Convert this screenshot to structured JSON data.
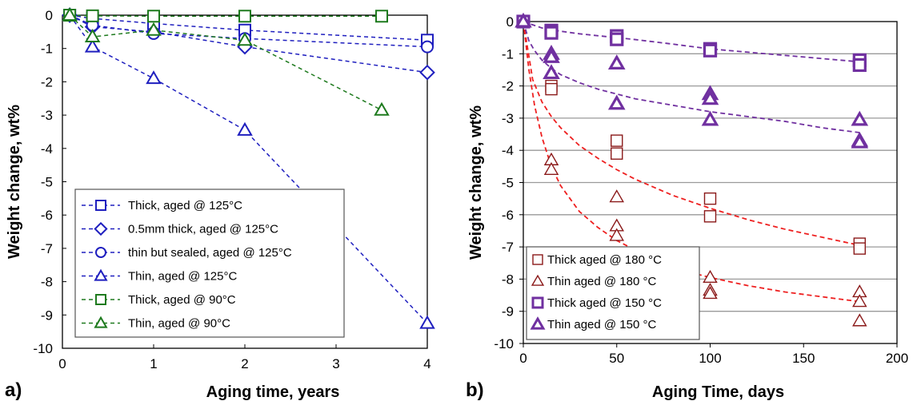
{
  "chart_data": [
    {
      "type": "line",
      "panel_label": "a)",
      "xlabel": "Aging time, years",
      "ylabel": "Weight change, wt%",
      "xlim": [
        0,
        4
      ],
      "ylim": [
        -10,
        0
      ],
      "xticks": [
        0,
        1,
        2,
        3,
        4
      ],
      "yticks": [
        0,
        -1,
        -2,
        -3,
        -4,
        -5,
        -6,
        -7,
        -8,
        -9,
        -10
      ],
      "grid": false,
      "legend_position": "bottom-left",
      "series": [
        {
          "name": "Thick, aged @ 125°C",
          "color": "#1f1fbf",
          "marker": "square",
          "line": "dashed",
          "x": [
            0.08,
            0.33,
            1,
            2,
            4
          ],
          "y": [
            0,
            -0.1,
            -0.25,
            -0.45,
            -0.75
          ]
        },
        {
          "name": "0.5mm thick, aged @ 125°C",
          "color": "#1f1fbf",
          "marker": "diamond",
          "line": "dashed",
          "x": [
            0.08,
            0.33,
            1,
            2,
            4
          ],
          "y": [
            0,
            -0.35,
            -0.5,
            -0.95,
            -1.72
          ]
        },
        {
          "name": "thin but sealed, aged @ 125°C",
          "color": "#1f1fbf",
          "marker": "circle",
          "line": "dashed",
          "x": [
            0.08,
            0.33,
            1,
            2,
            4
          ],
          "y": [
            0,
            -0.3,
            -0.55,
            -0.7,
            -0.95
          ]
        },
        {
          "name": "Thin, aged @ 125°C",
          "color": "#1f1fbf",
          "marker": "triangle",
          "line": "dashed",
          "x": [
            0.08,
            0.33,
            1,
            2,
            4
          ],
          "y": [
            0,
            -0.95,
            -1.9,
            -3.45,
            -9.25
          ]
        },
        {
          "name": "Thick, aged @ 90°C",
          "color": "#1e7a1e",
          "marker": "square",
          "line": "dashed",
          "x": [
            0.08,
            0.33,
            1,
            2,
            3.5
          ],
          "y": [
            0,
            -0.02,
            -0.03,
            -0.03,
            -0.03
          ]
        },
        {
          "name": "Thin, aged @ 90°C",
          "color": "#1e7a1e",
          "marker": "triangle",
          "line": "dashed",
          "x": [
            0.08,
            0.33,
            1,
            2,
            3.5
          ],
          "y": [
            0,
            -0.65,
            -0.45,
            -0.75,
            -2.85
          ]
        }
      ]
    },
    {
      "type": "scatter",
      "panel_label": "b)",
      "xlabel": "Aging Time, days",
      "ylabel": "Weight change, wt%",
      "xlim": [
        0,
        200
      ],
      "ylim": [
        -10,
        0
      ],
      "xticks": [
        0,
        50,
        100,
        150,
        200
      ],
      "yticks": [
        0,
        -1,
        -2,
        -3,
        -4,
        -5,
        -6,
        -7,
        -8,
        -9,
        -10
      ],
      "grid": true,
      "legend_position": "bottom-left",
      "series": [
        {
          "name": "Thick aged @ 180 °C",
          "color": "#8b1a1a",
          "marker": "square",
          "x": [
            0,
            15,
            15,
            50,
            50,
            100,
            100,
            180,
            180
          ],
          "y": [
            0,
            -2.0,
            -2.1,
            -3.7,
            -4.1,
            -5.5,
            -6.05,
            -6.9,
            -7.05
          ]
        },
        {
          "name": "Thin aged @ 180 °C",
          "color": "#8b1a1a",
          "marker": "triangle",
          "x": [
            0,
            15,
            15,
            50,
            50,
            50,
            100,
            100,
            100,
            180,
            180,
            180
          ],
          "y": [
            0,
            -4.3,
            -4.6,
            -5.45,
            -6.35,
            -6.65,
            -7.95,
            -8.35,
            -8.45,
            -8.4,
            -8.7,
            -9.3
          ]
        },
        {
          "name": "Thick aged @ 150 °C",
          "color": "#7030a0",
          "marker": "square",
          "bold": true,
          "x": [
            0,
            15,
            15,
            50,
            50,
            100,
            100,
            180,
            180
          ],
          "y": [
            0,
            -0.28,
            -0.35,
            -0.45,
            -0.55,
            -0.85,
            -0.9,
            -1.2,
            -1.35
          ]
        },
        {
          "name": "Thin aged @ 150 °C",
          "color": "#7030a0",
          "marker": "triangle",
          "bold": true,
          "x": [
            0,
            15,
            15,
            15,
            50,
            50,
            100,
            100,
            100,
            180,
            180,
            180
          ],
          "y": [
            0,
            -1.0,
            -1.1,
            -1.6,
            -1.3,
            -2.55,
            -2.25,
            -2.4,
            -3.05,
            -3.05,
            -3.7,
            -3.75
          ]
        }
      ],
      "fit_curves": [
        {
          "color": "#ee2020",
          "x": [
            0,
            5,
            10,
            15,
            20,
            30,
            40,
            50,
            60,
            70,
            80,
            90,
            100,
            120,
            140,
            160,
            180
          ],
          "y": [
            0,
            -1.8,
            -2.5,
            -2.95,
            -3.3,
            -3.85,
            -4.25,
            -4.6,
            -4.9,
            -5.15,
            -5.4,
            -5.6,
            -5.8,
            -6.15,
            -6.45,
            -6.7,
            -6.95
          ]
        },
        {
          "color": "#ee2020",
          "x": [
            0,
            3,
            6,
            10,
            15,
            20,
            30,
            40,
            50,
            60,
            70,
            80,
            90,
            100,
            120,
            140,
            160,
            180
          ],
          "y": [
            0,
            -1.5,
            -2.6,
            -3.6,
            -4.5,
            -5.1,
            -5.9,
            -6.4,
            -6.8,
            -7.1,
            -7.35,
            -7.6,
            -7.8,
            -7.95,
            -8.2,
            -8.4,
            -8.55,
            -8.7
          ]
        },
        {
          "color": "#7030a0",
          "x": [
            0,
            10,
            20,
            30,
            40,
            50,
            60,
            80,
            100,
            120,
            140,
            160,
            180
          ],
          "y": [
            0,
            -0.2,
            -0.3,
            -0.38,
            -0.44,
            -0.5,
            -0.56,
            -0.7,
            -0.85,
            -0.95,
            -1.05,
            -1.15,
            -1.25
          ]
        },
        {
          "color": "#7030a0",
          "x": [
            0,
            3,
            6,
            10,
            15,
            20,
            30,
            40,
            50,
            60,
            80,
            100,
            120,
            140,
            160,
            180
          ],
          "y": [
            0,
            -0.6,
            -0.9,
            -1.2,
            -1.45,
            -1.65,
            -1.9,
            -2.1,
            -2.25,
            -2.4,
            -2.6,
            -2.8,
            -2.95,
            -3.1,
            -3.3,
            -3.45
          ]
        }
      ]
    }
  ]
}
